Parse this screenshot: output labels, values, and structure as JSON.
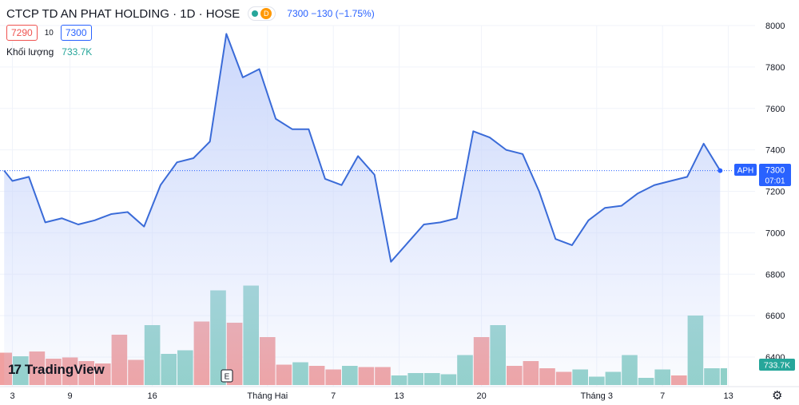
{
  "legend": {
    "title": "CTCP TD AN PHAT HOLDING · 1D · HOSE",
    "status_letter": "D",
    "change": "7300  −130 (−1.75%)",
    "bid": "7290",
    "spread": "10",
    "ask": "7300",
    "volume_label": "Khối lượng",
    "volume_value": "733.7K"
  },
  "branding": {
    "logo_text": "TradingView"
  },
  "price_axis": {
    "ticks": [
      "8000",
      "7800",
      "7600",
      "7400",
      "7200",
      "7000",
      "6800",
      "6600",
      "6400"
    ],
    "symbol_tag": "APH",
    "last_price": "7300",
    "countdown": "07:01",
    "volume_tag": "733.7K"
  },
  "time_axis": {
    "labels": [
      {
        "label": "3",
        "index": 0
      },
      {
        "label": "9",
        "index": 3.5
      },
      {
        "label": "16",
        "index": 8.5
      },
      {
        "label": "Tháng Hai",
        "index": 15.5
      },
      {
        "label": "7",
        "index": 19.5
      },
      {
        "label": "13",
        "index": 23.5
      },
      {
        "label": "20",
        "index": 28.5
      },
      {
        "label": "Tháng 3",
        "index": 35.5
      },
      {
        "label": "7",
        "index": 39.5
      },
      {
        "label": "13",
        "index": 43.5
      }
    ]
  },
  "chart_data": {
    "type": "area",
    "symbol": "APH",
    "interval": "1D",
    "exchange": "HOSE",
    "price": {
      "ylim": [
        6400,
        8000
      ],
      "x_index": [
        -0.5,
        0,
        1,
        2,
        3,
        4,
        5,
        6,
        7,
        8,
        9,
        10,
        11,
        12,
        13,
        14,
        15,
        16,
        17,
        18,
        19,
        20,
        21,
        22,
        23,
        24,
        25,
        26,
        27,
        28,
        29,
        30,
        31,
        32,
        33,
        34,
        35,
        36,
        37,
        38,
        39,
        40,
        41,
        42,
        43
      ],
      "values": [
        7300,
        7250,
        7270,
        7050,
        7070,
        7040,
        7060,
        7090,
        7100,
        7030,
        7230,
        7340,
        7360,
        7440,
        7960,
        7750,
        7790,
        7550,
        7500,
        7500,
        7260,
        7230,
        7370,
        7280,
        6860,
        6950,
        7040,
        7050,
        7070,
        7490,
        7460,
        7400,
        7380,
        7200,
        6970,
        6940,
        7060,
        7120,
        7130,
        7190,
        7230,
        7250,
        7270,
        7430,
        7300
      ],
      "last": 7300,
      "line_color": "#3a6bd8",
      "fill_color": "#c9d6fb"
    },
    "volume": {
      "x_index": [
        -0.5,
        0.5,
        1.5,
        2.5,
        3.5,
        4.5,
        5.5,
        6.5,
        7.5,
        8.5,
        9.5,
        10.5,
        11.5,
        12.5,
        13.5,
        14.5,
        15.5,
        16.5,
        17.5,
        18.5,
        19.5,
        20.5,
        21.5,
        22.5,
        23.5,
        24.5,
        25.5,
        26.5,
        27.5,
        28.5,
        29.5,
        30.5,
        31.5,
        32.5,
        33.5,
        34.5,
        35.5,
        36.5,
        37.5,
        38.5,
        39.5,
        40.5,
        41.5,
        42.5,
        43.5
      ],
      "direction": [
        "down",
        "up",
        "down",
        "down",
        "down",
        "down",
        "down",
        "down",
        "down",
        "up",
        "up",
        "up",
        "down",
        "up",
        "down",
        "up",
        "down",
        "down",
        "up",
        "down",
        "down",
        "up",
        "down",
        "down",
        "up",
        "up",
        "up",
        "up",
        "up",
        "down",
        "up",
        "down",
        "down",
        "down",
        "down",
        "up",
        "up",
        "up",
        "up",
        "up",
        "up",
        "down",
        "up",
        "up",
        "up"
      ],
      "relative_height": [
        0.27,
        0.24,
        0.28,
        0.22,
        0.23,
        0.2,
        0.18,
        0.42,
        0.21,
        0.5,
        0.26,
        0.29,
        0.53,
        0.79,
        0.52,
        0.83,
        0.4,
        0.17,
        0.19,
        0.16,
        0.13,
        0.16,
        0.15,
        0.15,
        0.08,
        0.1,
        0.1,
        0.09,
        0.25,
        0.4,
        0.5,
        0.16,
        0.2,
        0.14,
        0.11,
        0.13,
        0.07,
        0.11,
        0.25,
        0.06,
        0.13,
        0.08,
        0.58,
        0.14,
        0.14
      ],
      "last": "733.7K",
      "up_color": "#8fd0c8",
      "down_color": "#f0a0a0"
    }
  }
}
